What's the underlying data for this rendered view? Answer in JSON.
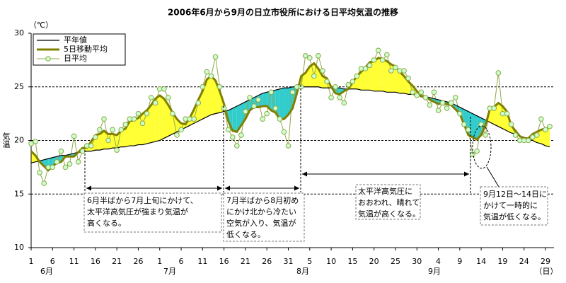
{
  "chart_data": {
    "type": "line",
    "title": "2006年6月から9月の日立市役所における日平均気温の推移",
    "y_unit": "（℃）",
    "y_label": "気温",
    "x_unit": "（日）",
    "months": [
      "6月",
      "7月",
      "8月",
      "9月"
    ],
    "categories": [
      "1",
      null,
      null,
      null,
      null,
      "6",
      null,
      null,
      null,
      null,
      "11",
      null,
      null,
      null,
      null,
      "16",
      null,
      null,
      null,
      null,
      "21",
      null,
      null,
      null,
      null,
      "26",
      null,
      null,
      null,
      null,
      "1",
      null,
      null,
      null,
      null,
      "6",
      null,
      null,
      null,
      null,
      "11",
      null,
      null,
      null,
      null,
      "16",
      null,
      null,
      null,
      null,
      "21",
      null,
      null,
      null,
      null,
      "26",
      null,
      null,
      null,
      null,
      "31",
      null,
      null,
      null,
      null,
      "5",
      null,
      null,
      null,
      null,
      "10",
      null,
      null,
      null,
      null,
      "15",
      null,
      null,
      null,
      null,
      "20",
      null,
      null,
      null,
      null,
      "25",
      null,
      null,
      null,
      null,
      "30",
      null,
      null,
      null,
      null,
      "4",
      null,
      null,
      null,
      null,
      "9",
      null,
      null,
      null,
      null,
      "14",
      null,
      null,
      null,
      null,
      "19",
      null,
      null,
      null,
      null,
      "24",
      null,
      null,
      null,
      null,
      "29",
      null
    ],
    "ylim": [
      10,
      30
    ],
    "yticks": [
      10,
      15,
      20,
      25,
      30
    ],
    "grid": true,
    "legend": "top-left",
    "fill": {
      "above": "#ffff33",
      "below": "#33cccc"
    },
    "series": [
      {
        "name": "平年値",
        "color": "#000000",
        "values": [
          17.9,
          18.0,
          18.1,
          18.2,
          18.3,
          18.4,
          18.5,
          18.6,
          18.6,
          18.7,
          18.8,
          18.9,
          18.9,
          19.0,
          19.0,
          19.1,
          19.1,
          19.2,
          19.2,
          19.3,
          19.3,
          19.4,
          19.4,
          19.5,
          19.5,
          19.6,
          19.6,
          19.7,
          19.8,
          19.9,
          20.0,
          20.2,
          20.4,
          20.6,
          20.8,
          21.0,
          21.2,
          21.4,
          21.6,
          21.8,
          22.0,
          22.2,
          22.4,
          22.5,
          22.6,
          22.7,
          22.8,
          23.0,
          23.2,
          23.4,
          23.6,
          23.8,
          24.0,
          24.2,
          24.4,
          24.5,
          24.6,
          24.7,
          24.8,
          24.9,
          24.9,
          25.0,
          25.0,
          25.0,
          25.0,
          25.0,
          25.0,
          25.0,
          24.9,
          24.9,
          24.9,
          24.9,
          24.9,
          24.8,
          24.8,
          24.8,
          24.8,
          24.7,
          24.7,
          24.7,
          24.6,
          24.6,
          24.6,
          24.5,
          24.5,
          24.5,
          24.4,
          24.4,
          24.3,
          24.3,
          24.2,
          24.2,
          24.1,
          24.0,
          23.9,
          23.8,
          23.7,
          23.6,
          23.5,
          23.3,
          23.1,
          22.9,
          22.7,
          22.5,
          22.3,
          22.1,
          21.9,
          21.7,
          21.5,
          21.3,
          21.1,
          20.9,
          20.7,
          20.6,
          20.4,
          20.3,
          20.1,
          20.0,
          19.8,
          19.7,
          19.5,
          19.4
        ]
      },
      {
        "name": "5日移動平均",
        "color": "#808000",
        "values": [
          19.0,
          18.6,
          18.0,
          17.6,
          17.2,
          17.6,
          17.9,
          18.0,
          18.5,
          18.5,
          18.5,
          18.9,
          19.3,
          19.3,
          19.9,
          20.5,
          20.6,
          20.9,
          20.6,
          20.6,
          20.5,
          20.9,
          21.1,
          21.8,
          21.9,
          22.1,
          22.5,
          22.8,
          23.3,
          23.9,
          24.2,
          23.9,
          23.3,
          22.6,
          22.0,
          21.6,
          21.5,
          22.1,
          22.9,
          23.8,
          24.6,
          25.7,
          26.0,
          25.6,
          24.6,
          23.4,
          21.8,
          20.9,
          20.8,
          21.4,
          22.0,
          22.8,
          23.1,
          23.1,
          23.2,
          23.2,
          22.8,
          22.6,
          22.0,
          22.0,
          22.4,
          23.0,
          24.4,
          26.0,
          26.3,
          26.9,
          27.2,
          26.7,
          26.0,
          25.8,
          25.0,
          24.4,
          24.3,
          24.6,
          24.8,
          25.4,
          26.0,
          26.4,
          26.8,
          27.3,
          27.4,
          27.7,
          27.6,
          27.4,
          27.1,
          26.9,
          26.4,
          26.0,
          25.5,
          25.1,
          24.6,
          24.1,
          24.1,
          23.8,
          23.6,
          23.4,
          23.5,
          23.4,
          23.3,
          22.9,
          22.5,
          21.5,
          20.5,
          20.3,
          20.1,
          20.5,
          21.4,
          22.9,
          23.1,
          23.5,
          23.2,
          22.7,
          21.4,
          20.9,
          20.4,
          20.2,
          20.2,
          20.6,
          20.8,
          21.0,
          21.1,
          21.2
        ]
      },
      {
        "name": "日平均",
        "color": "#8fa84a",
        "marker_fill": "#ccffcc",
        "values": [
          19.7,
          19.9,
          17.0,
          16.0,
          17.5,
          17.5,
          18.0,
          19.0,
          17.5,
          17.8,
          20.4,
          18.0,
          19.0,
          19.5,
          19.5,
          20.3,
          21.0,
          22.0,
          20.0,
          21.0,
          19.1,
          21.0,
          21.5,
          22.0,
          22.0,
          22.5,
          21.6,
          22.5,
          24.0,
          23.5,
          24.8,
          24.8,
          24.0,
          22.5,
          20.5,
          21.0,
          22.0,
          22.0,
          22.0,
          23.5,
          25.0,
          26.4,
          26.0,
          27.8,
          25.0,
          23.0,
          21.0,
          20.3,
          19.5,
          20.5,
          22.7,
          24.0,
          23.2,
          23.8,
          22.0,
          22.5,
          24.5,
          23.0,
          22.0,
          20.8,
          19.5,
          24.5,
          25.0,
          25.0,
          27.9,
          27.7,
          26.0,
          27.9,
          26.5,
          25.5,
          24.0,
          25.0,
          24.0,
          23.5,
          25.2,
          25.5,
          26.0,
          26.7,
          26.7,
          27.0,
          27.5,
          28.4,
          27.5,
          28.0,
          26.5,
          26.8,
          26.5,
          26.5,
          25.8,
          24.5,
          24.2,
          24.5,
          24.0,
          23.3,
          24.5,
          22.8,
          23.5,
          23.0,
          23.5,
          24.0,
          22.5,
          21.5,
          21.0,
          18.7,
          19.0,
          21.5,
          20.5,
          23.0,
          23.0,
          26.3,
          22.5,
          22.5,
          21.5,
          20.5,
          20.0,
          20.0,
          20.0,
          20.3,
          20.5,
          22.0,
          21.0,
          21.3
        ]
      }
    ],
    "annotations": [
      [
        "6月半ばから7月上旬にかけて、",
        "太平洋高気圧が強まり気温が",
        "高くなる。"
      ],
      [
        "7月半ばから8月初め",
        "にかけ北から冷たい",
        "空気が入り、気温が",
        "低くなる。"
      ],
      [
        "太平洋高気圧に",
        "おおわれ、晴れて",
        "気温が高くなる。"
      ],
      [
        "9月12日～14日に",
        "かけて一時的に",
        "気温が低くなる。"
      ]
    ]
  }
}
